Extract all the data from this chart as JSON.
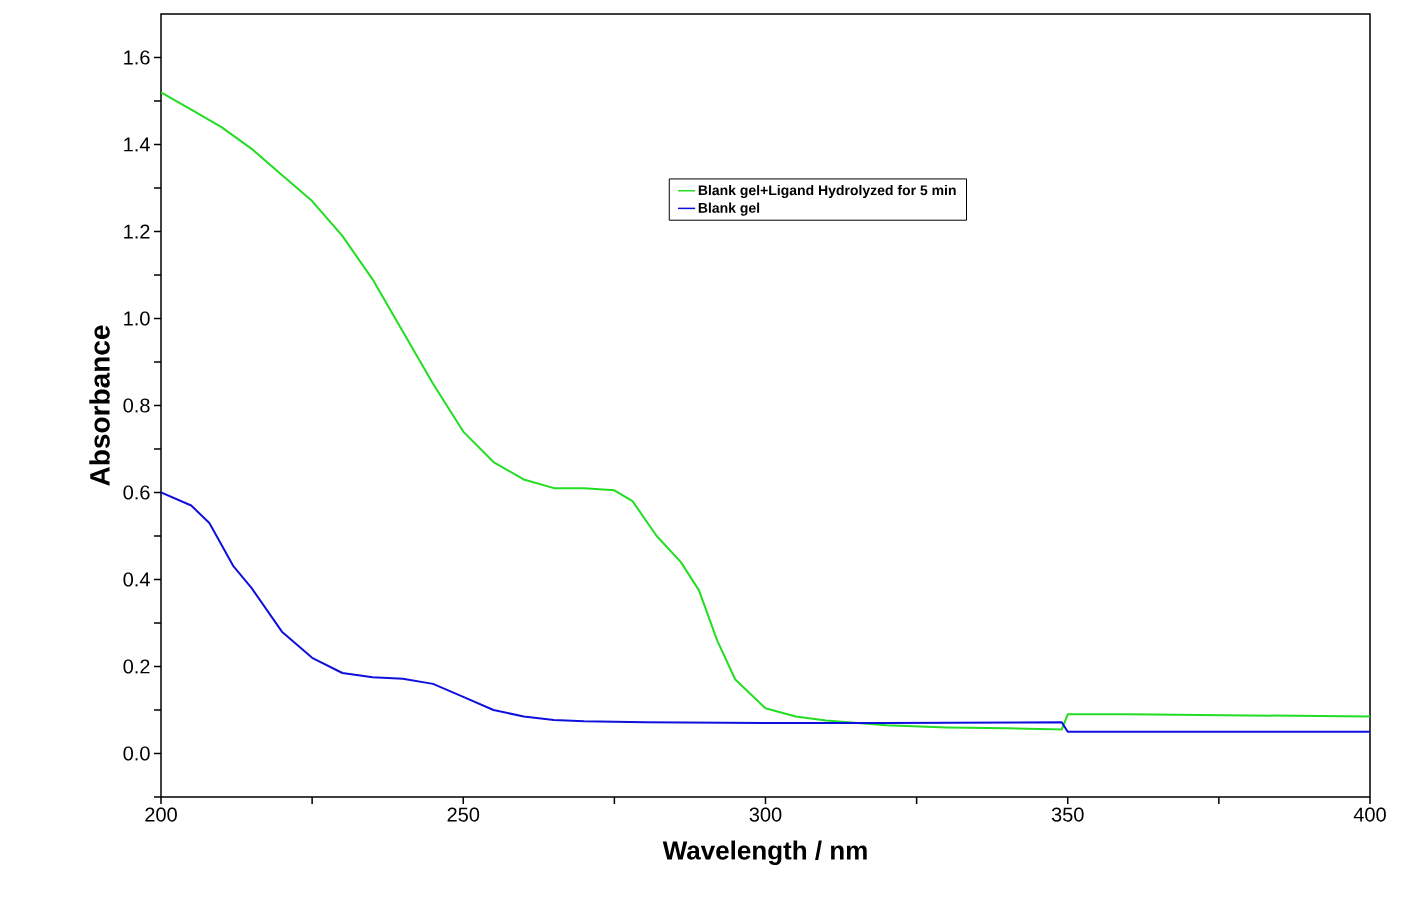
{
  "chart_data": {
    "type": "line",
    "xlabel": "Wavelength / nm",
    "ylabel": "Absorbance",
    "xlim": [
      200,
      400
    ],
    "ylim": [
      -0.1,
      1.7
    ],
    "xticks": [
      200,
      {
        "value": 225,
        "label": null
      },
      250,
      {
        "value": 275,
        "label": null
      },
      300,
      {
        "value": 325,
        "label": null
      },
      350,
      {
        "value": 375,
        "label": null
      },
      400
    ],
    "yticks": [
      {
        "value": -0.1,
        "label": null
      },
      {
        "value": 0.0,
        "label": "0.0"
      },
      {
        "value": 0.1,
        "label": null
      },
      0.2,
      {
        "value": 0.3,
        "label": null
      },
      0.4,
      {
        "value": 0.5,
        "label": null
      },
      0.6,
      {
        "value": 0.7,
        "label": null
      },
      0.8,
      {
        "value": 0.9,
        "label": null
      },
      {
        "value": 1.0,
        "label": "1.0"
      },
      {
        "value": 1.1,
        "label": null
      },
      1.2,
      {
        "value": 1.3,
        "label": null
      },
      1.4,
      {
        "value": 1.5,
        "label": null
      },
      1.6
    ],
    "legend": "top right",
    "grid": false,
    "marker": "none",
    "line_style": "solid",
    "series": [
      {
        "name": "Blank gel+Ligand Hydrolyzed for 5 min",
        "color": "#22dd22",
        "x": [
          200,
          205,
          210,
          215,
          220,
          225,
          230,
          235,
          240,
          245,
          250,
          255,
          260,
          265,
          270,
          275,
          278,
          282,
          286,
          289,
          292,
          295,
          300,
          305,
          310,
          320,
          330,
          340,
          349,
          350,
          360,
          400
        ],
        "values": [
          1.52,
          1.48,
          1.44,
          1.39,
          1.33,
          1.27,
          1.19,
          1.09,
          0.97,
          0.85,
          0.74,
          0.67,
          0.63,
          0.61,
          0.61,
          0.605,
          0.58,
          0.5,
          0.44,
          0.375,
          0.26,
          0.17,
          0.104,
          0.085,
          0.076,
          0.065,
          0.06,
          0.058,
          0.055,
          0.09,
          0.09,
          0.085
        ]
      },
      {
        "name": "Blank gel",
        "color": "#1010dd",
        "x": [
          200,
          205,
          208,
          212,
          215,
          220,
          225,
          230,
          235,
          240,
          245,
          250,
          255,
          260,
          265,
          270,
          280,
          300,
          320,
          349,
          350,
          400
        ],
        "values": [
          0.6,
          0.57,
          0.53,
          0.43,
          0.38,
          0.28,
          0.22,
          0.185,
          0.175,
          0.172,
          0.16,
          0.13,
          0.1,
          0.085,
          0.077,
          0.074,
          0.072,
          0.07,
          0.07,
          0.072,
          0.05,
          0.05
        ]
      }
    ]
  }
}
